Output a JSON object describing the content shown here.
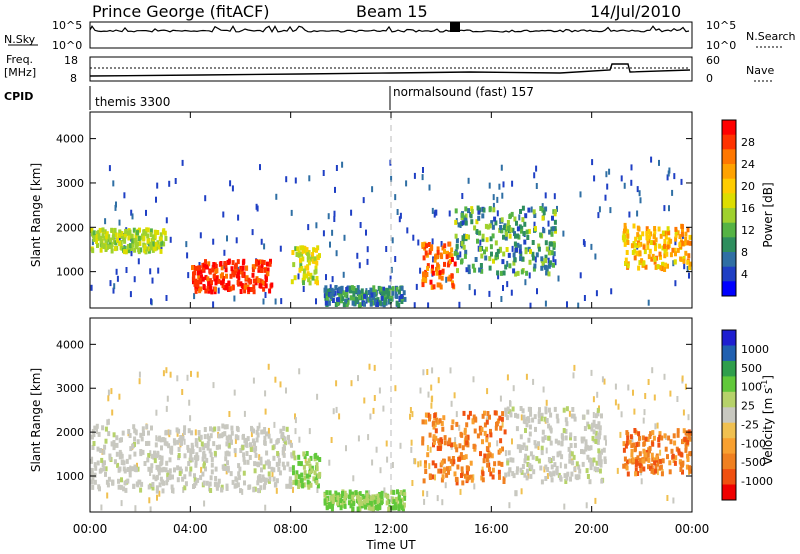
{
  "header": {
    "title": "Prince George (fitACF)",
    "beam": "Beam 15",
    "date": "14/Jul/2010"
  },
  "top_panels": {
    "nsky_label": "N.Sky",
    "nsky_ticks": [
      "10^5",
      "10^0"
    ],
    "nsearch_ticks": [
      "10^5",
      "10^0"
    ],
    "nsearch_label": "N.Search",
    "freq_label_1": "Freq.",
    "freq_label_2": "[MHz]",
    "freq_ticks": [
      "18",
      "8"
    ],
    "nave_ticks": [
      "60",
      "0"
    ],
    "nave_label": "Nave",
    "cpid_label": "CPID",
    "cpid_1": "themis 3300",
    "cpid_2": "normalsound (fast) 157"
  },
  "x_axis": {
    "ticks": [
      "00:00",
      "04:00",
      "08:00",
      "12:00",
      "16:00",
      "20:00",
      "00:00"
    ],
    "label": "Time UT"
  },
  "power_colorbar": {
    "label": "Power [dB]",
    "ticks": [
      "28",
      "24",
      "20",
      "16",
      "12",
      "8",
      "4"
    ],
    "colors": [
      "#ff0000",
      "#ff3300",
      "#ff7700",
      "#ffa200",
      "#ffcc00",
      "#dddd00",
      "#9fd12e",
      "#55b344",
      "#2e8e5e",
      "#2f6fa4",
      "#1f3fc4",
      "#0000ff"
    ]
  },
  "velocity_colorbar": {
    "label": "Velocity [m s",
    "label_sup": "-1",
    "label_end": "]",
    "ticks": [
      "1000",
      "500",
      "100",
      "25",
      "-25",
      "-100",
      "-500",
      "-1000"
    ],
    "colors": [
      "#1f1fd0",
      "#2060b0",
      "#2f9e4c",
      "#61c83a",
      "#b6d26a",
      "#c8c8c0",
      "#f0c050",
      "#f8a030",
      "#f08020",
      "#f05010",
      "#f00000"
    ]
  },
  "chart_data": [
    {
      "type": "heatmap",
      "title": "Power",
      "ylabel": "Slant Range [km]",
      "yticks": [
        "1000",
        "2000",
        "3000",
        "4000"
      ],
      "ylim": [
        180,
        4600
      ],
      "xlim": [
        0,
        24
      ],
      "x_unit": "hours UT",
      "colorbar_label": "Power [dB]",
      "colorbar_range": [
        0,
        30
      ],
      "features": [
        {
          "t0": 0.0,
          "t1": 3.0,
          "r0": 1500,
          "r1": 2000,
          "level": "12-16"
        },
        {
          "t0": 4.0,
          "t1": 7.2,
          "r0": 600,
          "r1": 1300,
          "level": "24-30"
        },
        {
          "t0": 8.0,
          "t1": 9.1,
          "r0": 800,
          "r1": 1600,
          "level": "12-20"
        },
        {
          "t0": 9.3,
          "t1": 12.5,
          "r0": 300,
          "r1": 700,
          "level": "4-12"
        },
        {
          "t0": 13.2,
          "t1": 14.5,
          "r0": 700,
          "r1": 1700,
          "level": "20-28"
        },
        {
          "t0": 14.5,
          "t1": 18.5,
          "r0": 1000,
          "r1": 2500,
          "level": "4-16"
        },
        {
          "t0": 21.2,
          "t1": 23.9,
          "r0": 1100,
          "r1": 2100,
          "level": "16-24"
        }
      ]
    },
    {
      "type": "heatmap",
      "title": "Velocity",
      "ylabel": "Slant Range [km]",
      "yticks": [
        "1000",
        "2000",
        "3000",
        "4000"
      ],
      "ylim": [
        180,
        4600
      ],
      "xlim": [
        0,
        24
      ],
      "x_unit": "hours UT",
      "colorbar_label": "Velocity [m s^-1]",
      "colorbar_range": [
        -1000,
        1000
      ],
      "features": [
        {
          "t0": 0.0,
          "t1": 8.0,
          "r0": 700,
          "r1": 2200,
          "level": "-25 to 25"
        },
        {
          "t0": 8.0,
          "t1": 9.1,
          "r0": 800,
          "r1": 1600,
          "level": "25 to 100"
        },
        {
          "t0": 9.3,
          "t1": 12.5,
          "r0": 300,
          "r1": 700,
          "level": "25 to 100"
        },
        {
          "t0": 13.2,
          "t1": 16.5,
          "r0": 900,
          "r1": 2500,
          "level": "-100 to -500"
        },
        {
          "t0": 16.5,
          "t1": 20.5,
          "r0": 900,
          "r1": 2600,
          "level": "-25 to 25"
        },
        {
          "t0": 21.2,
          "t1": 23.9,
          "r0": 1100,
          "r1": 2100,
          "level": "-100 to -500"
        }
      ]
    }
  ]
}
